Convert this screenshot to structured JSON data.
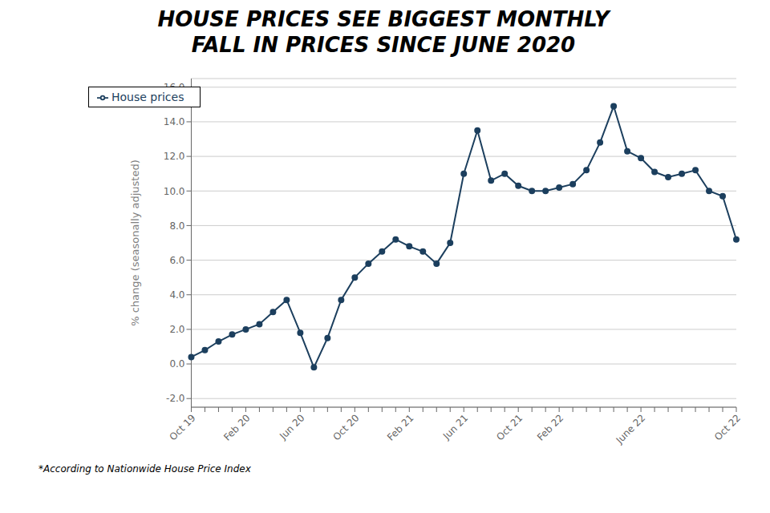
{
  "chart_data": {
    "type": "line",
    "title": "HOUSE PRICES SEE BIGGEST MONTHLY\nFALL IN PRICES SINCE JUNE 2020",
    "y_label": "% change (seasonally adjusted)",
    "annotations": [
      "*According to Nationwide House Price Index"
    ],
    "categories": [
      "Oct 19",
      null,
      null,
      null,
      "Feb 20",
      null,
      null,
      null,
      "Jun 20",
      null,
      null,
      null,
      "Oct 20",
      null,
      null,
      null,
      "Feb 21",
      null,
      null,
      null,
      "Jun 21",
      null,
      null,
      null,
      "Oct 21",
      null,
      null,
      "Feb 22",
      null,
      null,
      null,
      null,
      null,
      "June 22",
      null,
      null,
      null,
      null,
      null,
      null,
      "Oct 22"
    ],
    "series": [
      {
        "name": "House prices",
        "color": "#1C3F5E",
        "marker": "circle",
        "line_style": "solid",
        "values": [
          0.4,
          0.8,
          1.3,
          1.7,
          2.0,
          2.3,
          3.0,
          3.7,
          1.8,
          -0.2,
          1.5,
          3.7,
          5.0,
          5.8,
          6.5,
          7.2,
          6.8,
          6.5,
          5.8,
          7.0,
          11.0,
          13.5,
          10.6,
          11.0,
          10.3,
          10.0,
          10.0,
          10.2,
          10.4,
          11.2,
          12.8,
          14.9,
          12.3,
          11.9,
          11.1,
          10.8,
          11.0,
          11.2,
          10.0,
          9.7,
          7.2
        ]
      }
    ],
    "ylim": [
      -2.5,
      16.5
    ],
    "yticks": [
      {
        "value": -2.0,
        "label": "-2.0"
      },
      {
        "value": 0.0,
        "label": "0.0"
      },
      {
        "value": 2.0,
        "label": "2.0"
      },
      {
        "value": 4.0,
        "label": "4.0"
      },
      {
        "value": 6.0,
        "label": "6.0"
      },
      {
        "value": 8.0,
        "label": "8.0"
      },
      {
        "value": 10.0,
        "label": "10.0"
      },
      {
        "value": 12.0,
        "label": "12.0"
      },
      {
        "value": 14.0,
        "label": "14.0"
      },
      {
        "value": 16.0,
        "label": "16.0"
      }
    ],
    "grid": true,
    "legend": "upper left"
  }
}
